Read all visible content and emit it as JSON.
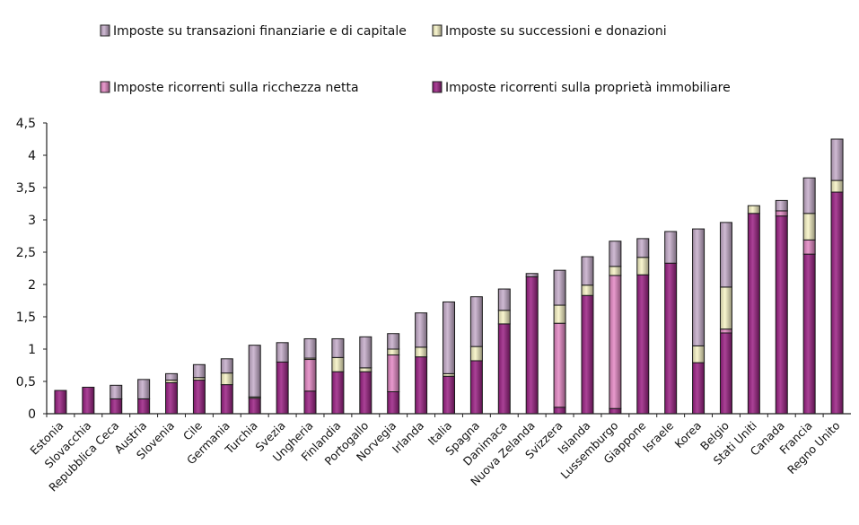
{
  "chart_data": {
    "type": "bar",
    "stacked": true,
    "title": "",
    "xlabel": "",
    "ylabel": "",
    "ylim": [
      0,
      4.5
    ],
    "yticks": [
      0,
      0.5,
      1,
      1.5,
      2,
      2.5,
      3,
      3.5,
      4,
      4.5
    ],
    "ytick_labels": [
      "0",
      "0,5",
      "1",
      "1,5",
      "2",
      "2,5",
      "3",
      "3,5",
      "4",
      "4,5"
    ],
    "grid": false,
    "legend_position": "top",
    "categories": [
      "Estonia",
      "Slovacchia",
      "Repubblica Ceca",
      "Austria",
      "Slovenia",
      "Cile",
      "Germania",
      "Turchia",
      "Svezia",
      "Ungheria",
      "Finlandia",
      "Portogallo",
      "Norvegia",
      "Irlanda",
      "Italia",
      "Spagna",
      "Danimaca",
      "Nuova Zelanda",
      "Svizzera",
      "Islanda",
      "Lussemburgo",
      "Giappone",
      "Israele",
      "Korea",
      "Belgio",
      "Stati Uniti",
      "Canada",
      "Francia",
      "Regno Unito"
    ],
    "series": [
      {
        "name": "Imposte ricorrenti sulla proprietà immobiliare",
        "color": "#9b2184",
        "values": [
          0.36,
          0.41,
          0.23,
          0.23,
          0.48,
          0.52,
          0.45,
          0.24,
          0.8,
          0.35,
          0.65,
          0.65,
          0.34,
          0.88,
          0.58,
          0.82,
          1.39,
          2.12,
          0.1,
          1.83,
          0.08,
          2.15,
          2.33,
          0.79,
          1.25,
          3.1,
          3.06,
          2.47,
          3.43
        ]
      },
      {
        "name": "Imposte ricorrenti sulla ricchezza netta",
        "color": "#e488c4",
        "values": [
          0,
          0,
          0,
          0,
          0,
          0,
          0,
          0,
          0,
          0.49,
          0,
          0,
          0.57,
          0,
          0,
          0,
          0,
          0,
          1.3,
          0,
          2.06,
          0,
          0,
          0,
          0.06,
          0,
          0.08,
          0.22,
          0
        ]
      },
      {
        "name": "Imposte su successioni e donazioni",
        "color": "#f8f4c6",
        "values": [
          0,
          0,
          0,
          0,
          0.04,
          0.04,
          0.18,
          0.02,
          0,
          0.02,
          0.22,
          0.06,
          0.09,
          0.15,
          0.04,
          0.22,
          0.21,
          0,
          0.28,
          0.16,
          0.14,
          0.27,
          0,
          0.26,
          0.65,
          0.12,
          0,
          0.41,
          0.18
        ]
      },
      {
        "name": "Imposte su transazioni finanziarie e di capitale",
        "color": "#c7aecb",
        "values": [
          0,
          0,
          0.21,
          0.3,
          0.1,
          0.2,
          0.22,
          0.8,
          0.3,
          0.3,
          0.29,
          0.48,
          0.24,
          0.53,
          1.11,
          0.77,
          0.33,
          0.05,
          0.54,
          0.44,
          0.39,
          0.29,
          0.49,
          1.81,
          1.0,
          0,
          0.16,
          0.55,
          0.64
        ]
      }
    ],
    "legend": [
      {
        "label": "Imposte su transazioni finanziarie e di capitale",
        "series": 3
      },
      {
        "label": "Imposte su successioni e donazioni",
        "series": 2
      },
      {
        "label": "Imposte ricorrenti sulla ricchezza netta",
        "series": 1
      },
      {
        "label": "Imposte ricorrenti sulla proprietà immobiliare",
        "series": 0
      }
    ]
  }
}
